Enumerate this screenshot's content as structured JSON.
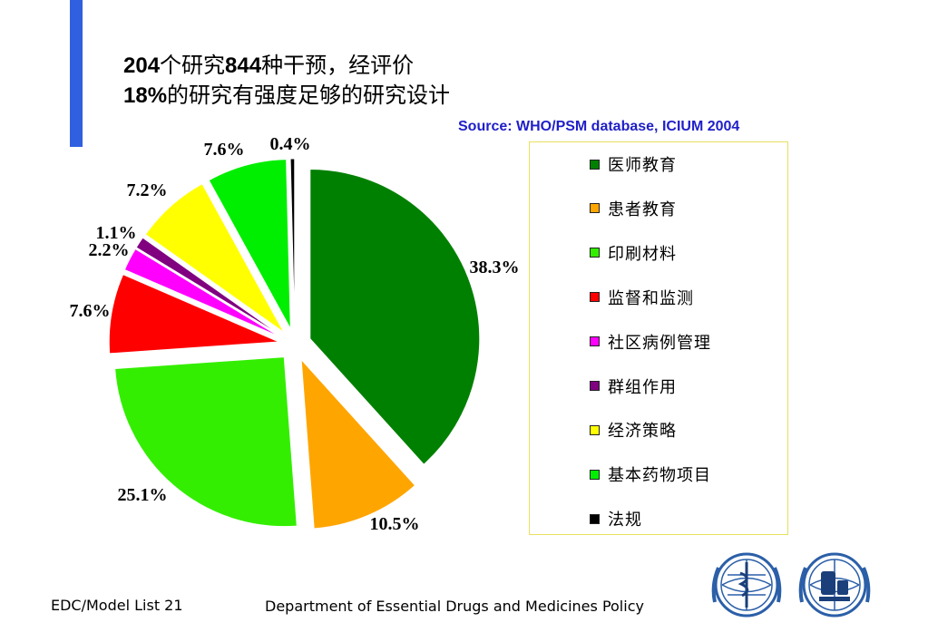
{
  "header": {
    "title_line1_num1": "204",
    "title_line1_text1": "个研究",
    "title_line1_num2": "844",
    "title_line1_text2": "种干预，经评价",
    "title_line2_num": "18%",
    "title_line2_text": "的研究有强度足够的研究设计",
    "source": "Source: WHO/PSM database, ICIUM 2004"
  },
  "colors": {
    "accent_bar": "#3060e0",
    "source_text": "#1f1fc8"
  },
  "chart_data": {
    "type": "pie",
    "slices": [
      {
        "label": "医师教育",
        "value": 38.3,
        "display": "38.3%",
        "color": "#008000"
      },
      {
        "label": "患者教育",
        "value": 10.5,
        "display": "10.5%",
        "color": "#ffa500"
      },
      {
        "label": "印刷材料",
        "value": 25.1,
        "display": "25.1%",
        "color": "#33ee00"
      },
      {
        "label": "监督和监测",
        "value": 7.6,
        "display": "7.6%",
        "color": "#ff0000"
      },
      {
        "label": "社区病例管理",
        "value": 2.2,
        "display": "2.2%",
        "color": "#ff00ff"
      },
      {
        "label": "群组作用",
        "value": 1.1,
        "display": "1.1%",
        "color": "#800080"
      },
      {
        "label": "经济策略",
        "value": 7.2,
        "display": "7.2%",
        "color": "#ffff00"
      },
      {
        "label": "基本药物项目",
        "value": 7.6,
        "display": "7.6%",
        "color": "#00ee00"
      },
      {
        "label": "法规",
        "value": 0.4,
        "display": "0.4%",
        "color": "#000000"
      }
    ],
    "legend_position": "right"
  },
  "footer": {
    "left": "EDC/Model List 21",
    "center": "Department of Essential Drugs and Medicines Policy"
  },
  "logos": [
    "who-emblem-icon",
    "who-medicines-emblem-icon"
  ]
}
